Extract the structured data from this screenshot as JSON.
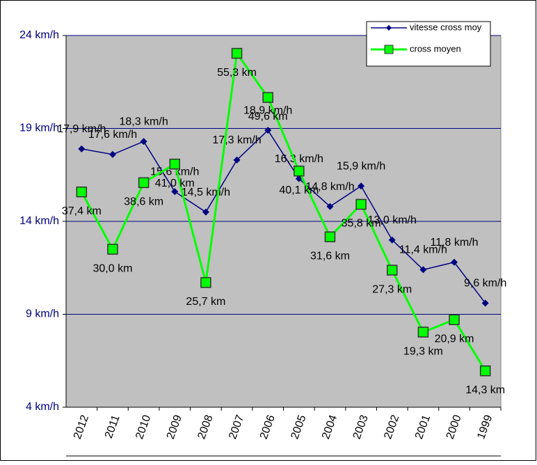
{
  "chart_data": {
    "type": "line",
    "categories": [
      "2012",
      "2011",
      "2010",
      "2009",
      "2008",
      "2007",
      "2006",
      "2005",
      "2004",
      "2003",
      "2002",
      "2001",
      "2000",
      "1999"
    ],
    "series": [
      {
        "name": "vitesse cross moy",
        "color": "#000080",
        "values": [
          17.9,
          17.6,
          18.3,
          15.6,
          14.5,
          17.3,
          18.9,
          16.3,
          14.8,
          15.9,
          13.0,
          11.4,
          11.8,
          9.6
        ],
        "value_labels": [
          "17,9 km/h",
          "17,6 km/h",
          "18,3 km/h",
          "15,6 km/h",
          "14,5 km/h",
          "17,3 km/h",
          "18,9 km/h",
          "16,3 km/h",
          "14,8 km/h",
          "15,9 km/h",
          "13,0 km/h",
          "11,4 km/h",
          "11,8 km/h",
          "9,6 km/h"
        ]
      },
      {
        "name": "cross moyen",
        "color": "#00ff00",
        "axis": "y2",
        "values": [
          37.4,
          30.0,
          38.6,
          41.0,
          25.7,
          55.3,
          49.6,
          40.1,
          31.6,
          35.8,
          27.3,
          19.3,
          20.9,
          14.3
        ],
        "value_labels": [
          "37,4 km",
          "30,0 km",
          "38,6 km",
          "41,0 km",
          "25,7 km",
          "55,3 km",
          "49,6 km",
          "40,1 km",
          "31,6 km",
          "35,8 km",
          "27,3 km",
          "19,3 km",
          "20,9 km",
          "14,3 km"
        ]
      }
    ],
    "ylim": [
      4,
      24
    ],
    "yticks": [
      {
        "value": 4,
        "label": "4 km/h"
      },
      {
        "value": 9,
        "label": "9 km/h"
      },
      {
        "value": 14,
        "label": "14 km/h"
      },
      {
        "value": 19,
        "label": "19 km/h"
      },
      {
        "value": 24,
        "label": "24 km/h"
      }
    ],
    "y2lim": [
      9.6,
      57.6
    ],
    "grid": true,
    "legend": "top-right"
  }
}
